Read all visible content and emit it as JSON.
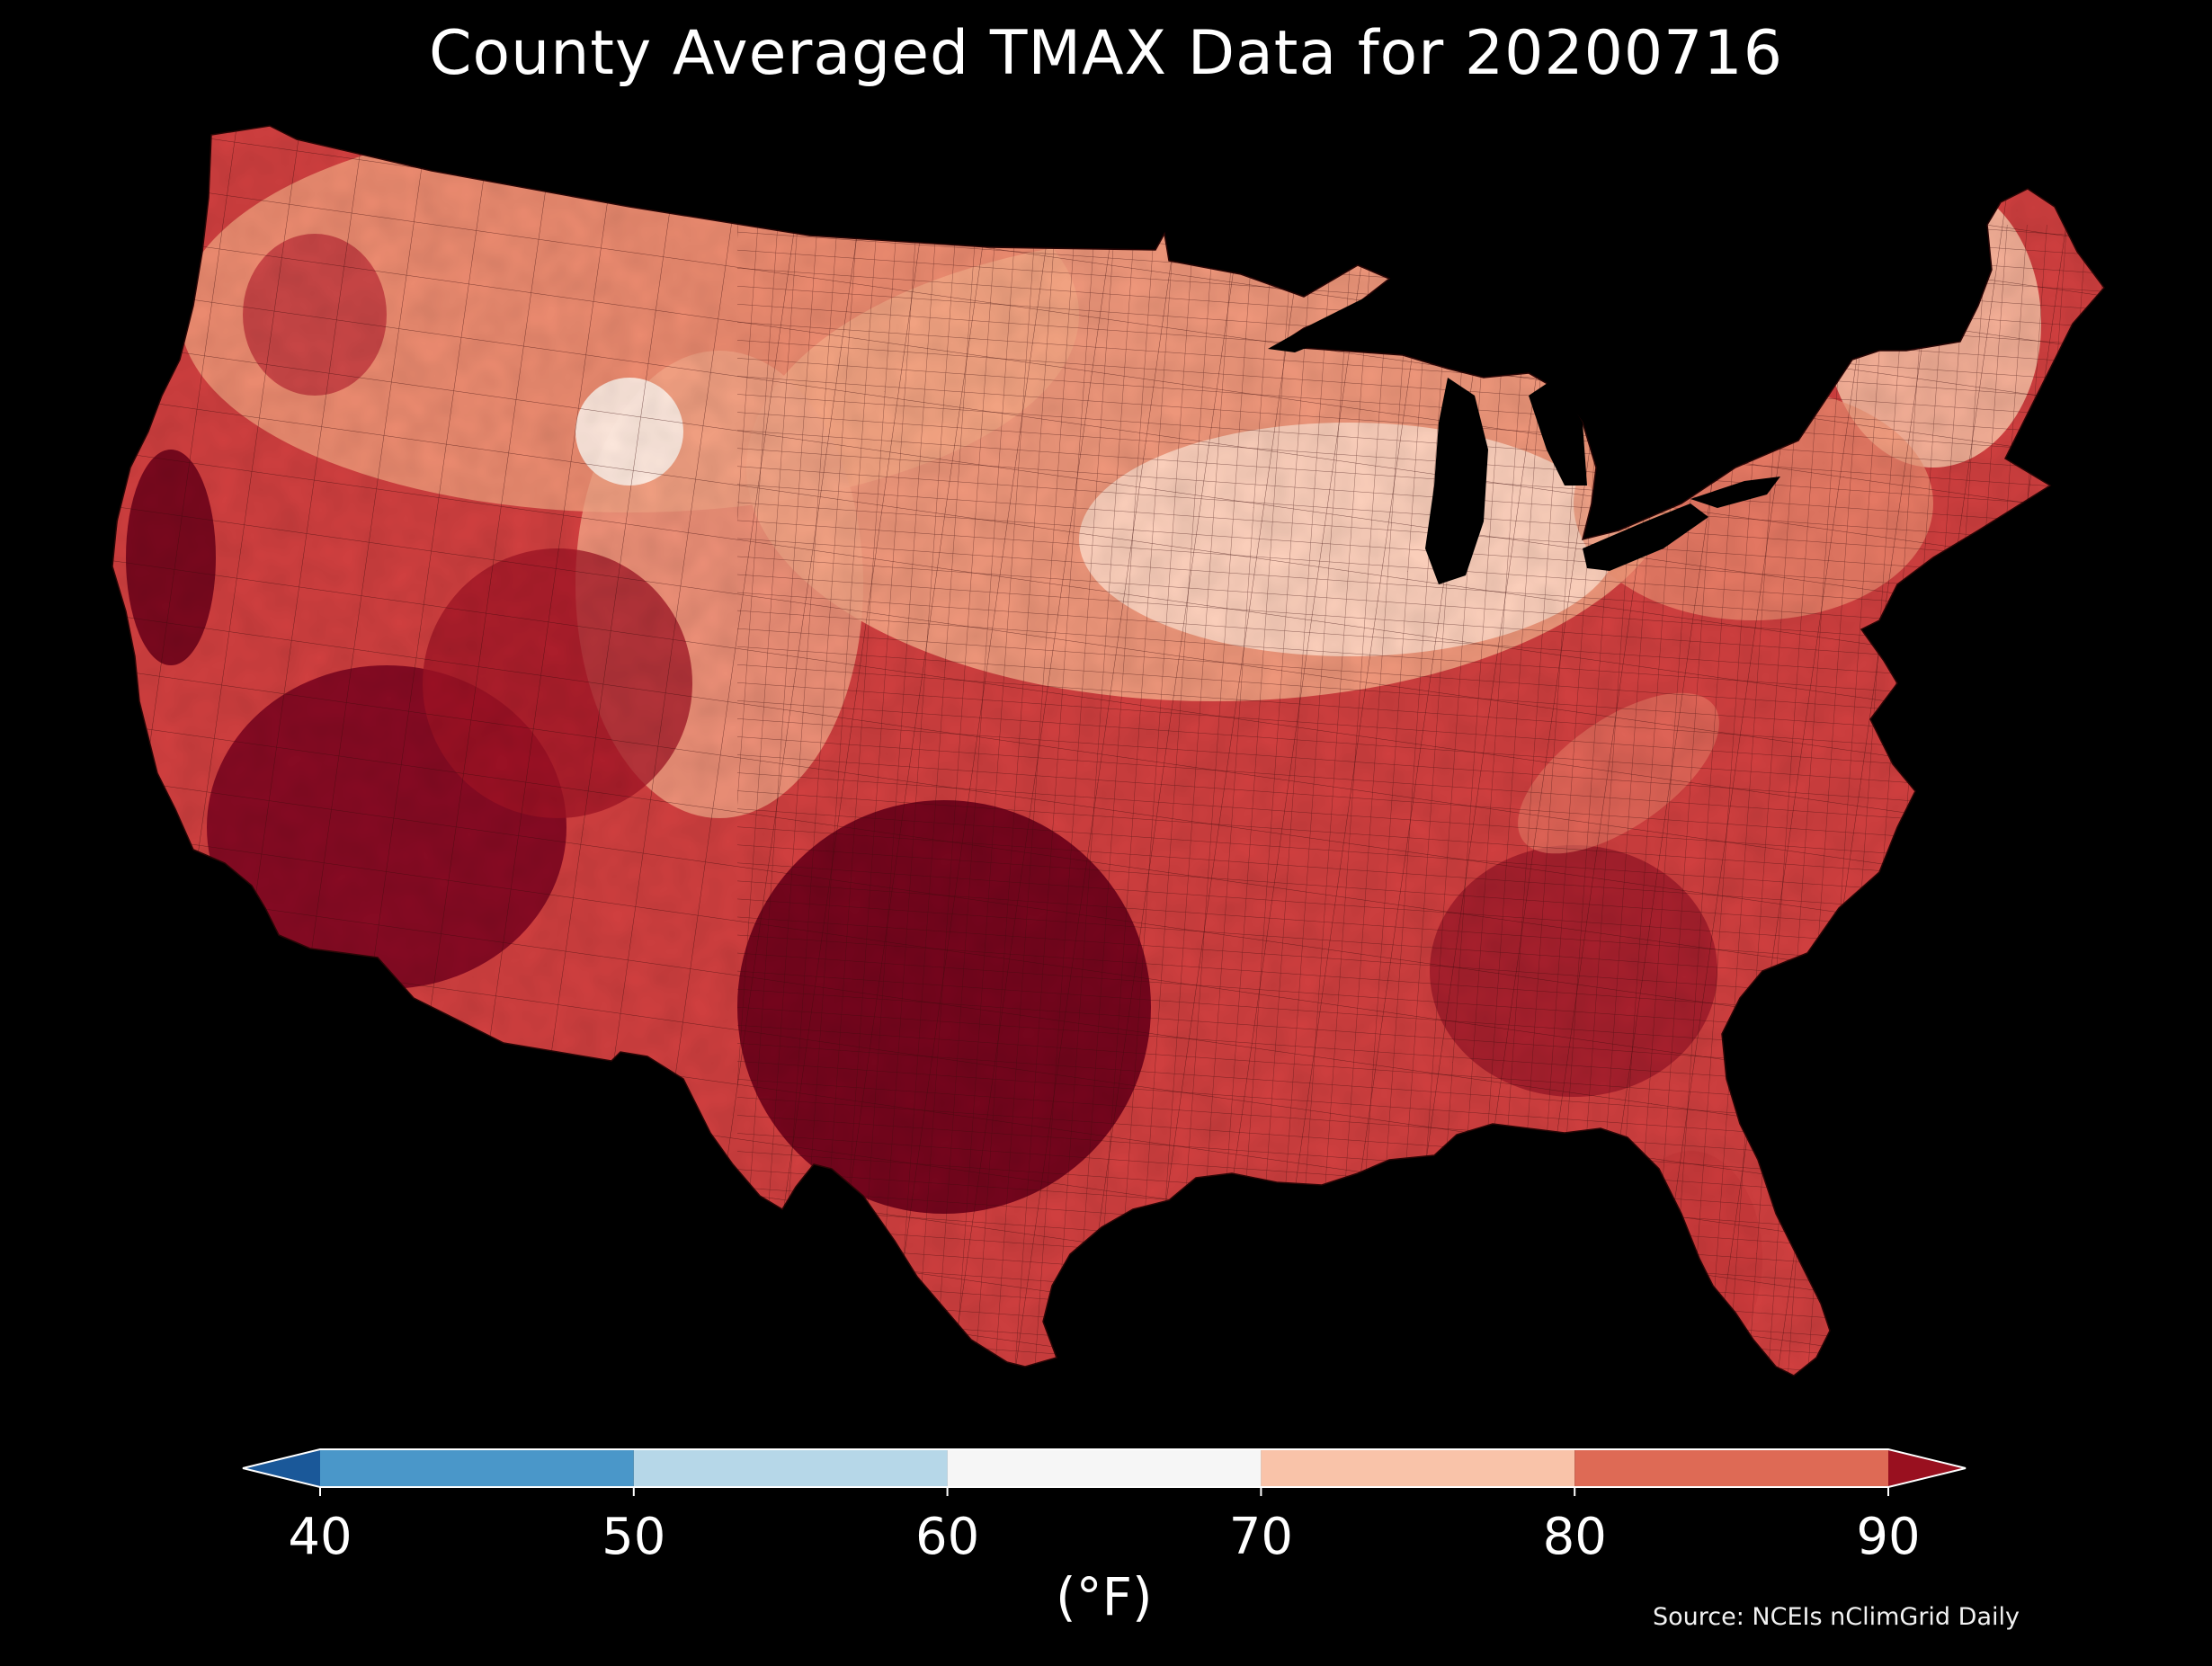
{
  "title": "County Averaged TMAX Data for 20200716",
  "source": "Source: NCEIs nClimGrid Daily",
  "colorbar": {
    "unit_label": "(°F)",
    "ticks": [
      "40",
      "50",
      "60",
      "70",
      "80",
      "90"
    ],
    "tick_values": [
      40,
      50,
      60,
      70,
      80,
      90
    ],
    "bins": [
      {
        "from": 40,
        "to": 50,
        "color": "#4a97c9"
      },
      {
        "from": 50,
        "to": 60,
        "color": "#b6d7e8"
      },
      {
        "from": 60,
        "to": 70,
        "color": "#f6f6f6"
      },
      {
        "from": 70,
        "to": 80,
        "color": "#f9c3a9"
      },
      {
        "from": 80,
        "to": 90,
        "color": "#de6a55"
      }
    ],
    "under_color": "#1a5899",
    "over_color": "#99101f",
    "extend": "both"
  },
  "map": {
    "region": "Contiguous United States",
    "background_color": "#000000",
    "county_edge_color": "#3a0a0a",
    "ramp_colors": [
      "#fdeee6",
      "#f7c1a5",
      "#ec9274",
      "#de6a55",
      "#c63538",
      "#9f1426",
      "#6a0019"
    ]
  }
}
